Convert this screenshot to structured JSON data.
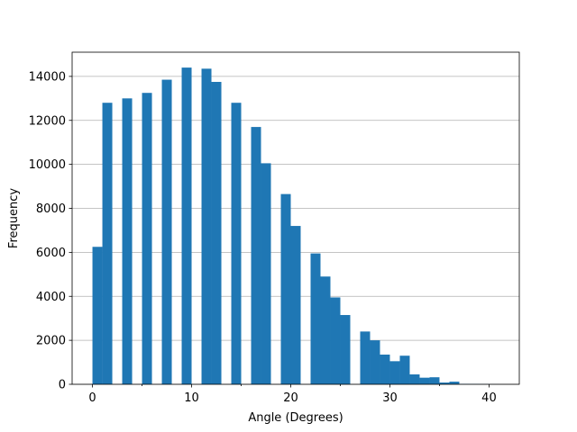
{
  "chart_data": {
    "type": "bar",
    "subtype": "histogram",
    "xlabel": "Angle (Degrees)",
    "ylabel": "Frequency",
    "xlim": [
      -2.05,
      43.05
    ],
    "ylim": [
      0,
      15100
    ],
    "xticks": [
      0,
      10,
      20,
      30,
      40
    ],
    "yticks": [
      0,
      2000,
      4000,
      6000,
      8000,
      10000,
      12000,
      14000
    ],
    "bar_color": "#1f77b4",
    "grid": {
      "axis": "y",
      "color": "#b0b0b0"
    },
    "bin_edges": [
      0,
      1,
      2,
      3,
      4,
      5,
      6,
      7,
      8,
      9,
      10,
      11,
      12,
      13,
      14,
      15,
      16,
      17,
      18,
      19,
      20,
      21,
      22,
      23,
      24,
      25,
      26,
      27,
      28,
      29,
      30,
      31,
      32,
      33,
      34,
      35,
      36,
      37,
      38,
      39,
      40,
      41
    ],
    "values": [
      6250,
      12800,
      0,
      13000,
      0,
      13250,
      0,
      13850,
      0,
      14400,
      0,
      14350,
      13750,
      0,
      12800,
      0,
      11700,
      10050,
      0,
      8650,
      7200,
      0,
      5950,
      4900,
      3950,
      3150,
      0,
      2400,
      2000,
      1350,
      1050,
      1300,
      450,
      300,
      320,
      80,
      120,
      20,
      15,
      10,
      5
    ]
  }
}
